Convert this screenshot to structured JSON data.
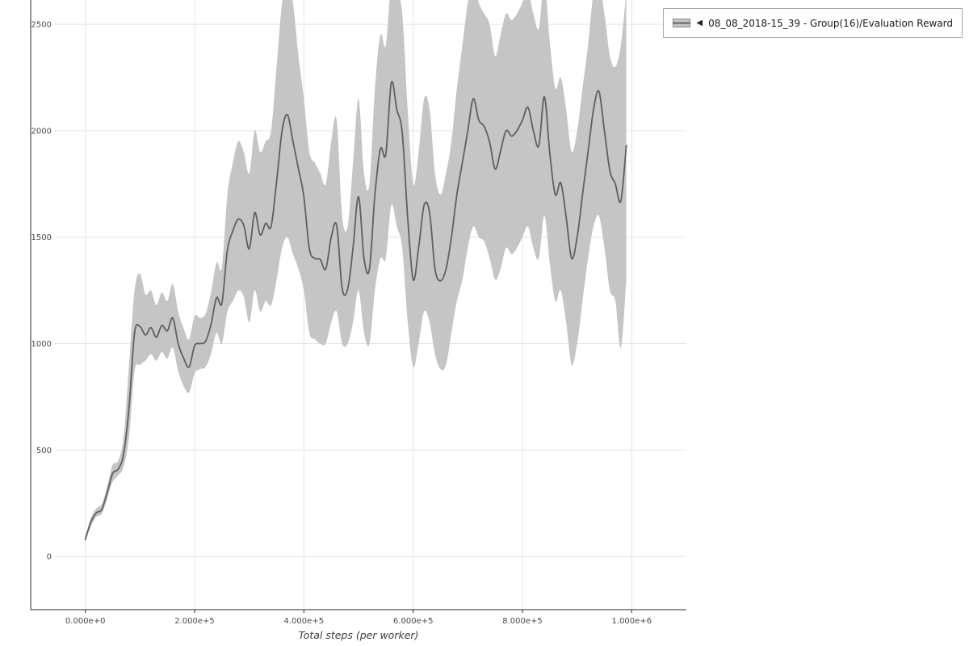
{
  "colors": {
    "line": "#5f5f5f",
    "band": "#c5c5c5",
    "grid": "#e4e4e4",
    "axis": "#2a2a2a",
    "tick_text": "#4a4a4a"
  },
  "legend": {
    "collapse_icon": "◀",
    "label": "08_08_2018-15_39 - Group(16)/Evaluation Reward"
  },
  "chart_data": {
    "type": "line",
    "title": "",
    "xlabel": "Total steps (per worker)",
    "ylabel": "",
    "grid": true,
    "legend_position": "top-right",
    "series_name": "08_08_2018-15_39 - Group(16)/Evaluation Reward",
    "xlim": [
      -100000,
      1100000
    ],
    "ylim": [
      -250,
      2614
    ],
    "x_ticks": [
      "0.000e+0",
      "2.000e+5",
      "4.000e+5",
      "6.000e+5",
      "8.000e+5",
      "1.000e+6"
    ],
    "x_tick_values": [
      0,
      200000,
      400000,
      600000,
      800000,
      1000000
    ],
    "y_ticks": [
      0,
      500,
      1000,
      1500,
      2000,
      2500
    ],
    "x_start": 0,
    "x_step": 10000,
    "series": {
      "mean": [
        80,
        160,
        205,
        220,
        300,
        390,
        410,
        480,
        700,
        1050,
        1080,
        1040,
        1075,
        1030,
        1085,
        1060,
        1120,
        1000,
        930,
        890,
        990,
        1000,
        1010,
        1090,
        1215,
        1190,
        1440,
        1530,
        1585,
        1555,
        1445,
        1615,
        1510,
        1565,
        1550,
        1760,
        2000,
        2075,
        1950,
        1820,
        1690,
        1445,
        1400,
        1395,
        1350,
        1500,
        1555,
        1260,
        1255,
        1450,
        1690,
        1400,
        1350,
        1700,
        1915,
        1890,
        2225,
        2100,
        1990,
        1590,
        1300,
        1450,
        1650,
        1615,
        1350,
        1295,
        1350,
        1500,
        1700,
        1850,
        2000,
        2150,
        2050,
        2020,
        1945,
        1820,
        1905,
        2000,
        1975,
        2000,
        2050,
        2110,
        2000,
        1930,
        2160,
        1895,
        1700,
        1755,
        1595,
        1400,
        1500,
        1700,
        1900,
        2100,
        2185,
        2000,
        1810,
        1750,
        1670,
        1930
      ],
      "band_upper": [
        95,
        180,
        225,
        245,
        330,
        430,
        450,
        560,
        900,
        1250,
        1330,
        1230,
        1250,
        1180,
        1240,
        1200,
        1280,
        1150,
        1070,
        1020,
        1130,
        1120,
        1140,
        1240,
        1380,
        1360,
        1700,
        1850,
        1950,
        1900,
        1800,
        2000,
        1900,
        1950,
        2000,
        2300,
        2600,
        2700,
        2600,
        2350,
        2150,
        1900,
        1850,
        1800,
        1750,
        1950,
        2050,
        1600,
        1550,
        1850,
        2150,
        1800,
        1750,
        2200,
        2450,
        2400,
        2700,
        2650,
        2550,
        2100,
        1750,
        1900,
        2150,
        2100,
        1800,
        1700,
        1800,
        1950,
        2200,
        2400,
        2600,
        2700,
        2600,
        2550,
        2500,
        2350,
        2450,
        2550,
        2520,
        2550,
        2600,
        2650,
        2550,
        2480,
        2700,
        2420,
        2200,
        2250,
        2100,
        1900,
        2000,
        2200,
        2400,
        2650,
        2700,
        2550,
        2350,
        2300,
        2400,
        2650
      ],
      "band_lower": [
        70,
        140,
        185,
        200,
        270,
        350,
        380,
        420,
        560,
        870,
        900,
        920,
        950,
        920,
        960,
        930,
        980,
        870,
        800,
        770,
        860,
        880,
        890,
        950,
        1050,
        1000,
        1150,
        1200,
        1250,
        1220,
        1100,
        1250,
        1150,
        1200,
        1180,
        1300,
        1450,
        1500,
        1420,
        1350,
        1250,
        1050,
        1020,
        1000,
        1000,
        1100,
        1150,
        1000,
        1000,
        1100,
        1250,
        1050,
        1000,
        1250,
        1400,
        1400,
        1650,
        1550,
        1450,
        1100,
        890,
        1000,
        1150,
        1100,
        950,
        880,
        900,
        1050,
        1200,
        1300,
        1450,
        1550,
        1500,
        1480,
        1400,
        1300,
        1350,
        1450,
        1420,
        1450,
        1500,
        1550,
        1450,
        1400,
        1600,
        1380,
        1200,
        1250,
        1100,
        900,
        1000,
        1200,
        1400,
        1550,
        1600,
        1450,
        1250,
        1200,
        980,
        1300
      ]
    }
  }
}
